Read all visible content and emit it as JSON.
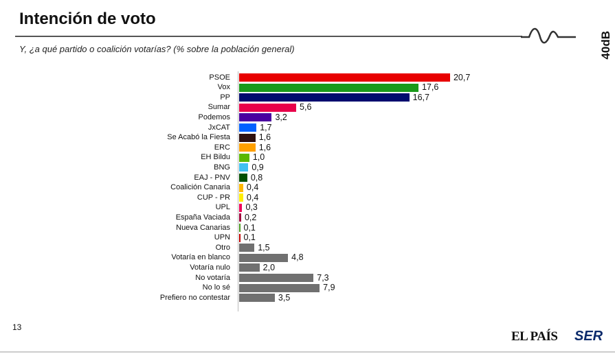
{
  "header": {
    "title": "Intención de voto",
    "subtitle": "Y, ¿a qué partido o coalición votarías? (% sobre la población general)",
    "brand": "40dB"
  },
  "footer": {
    "page_number": "13",
    "logo_1": "EL PAÍS",
    "logo_2": "SER"
  },
  "chart_data": {
    "type": "bar",
    "orientation": "horizontal",
    "title": "Intención de voto",
    "categories": [
      "PSOE",
      "Vox",
      "PP",
      "Sumar",
      "Podemos",
      "JxCAT",
      "Se Acabó la Fiesta",
      "ERC",
      "EH Bildu",
      "BNG",
      "EAJ - PNV",
      "Coalición Canaria",
      "CUP - PR",
      "UPL",
      "España Vaciada",
      "Nueva Canarias",
      "UPN",
      "Otro",
      "Votaría en blanco",
      "Votaría nulo",
      "No votaría",
      "No lo sé",
      "Prefiero no contestar"
    ],
    "values": [
      20.7,
      17.6,
      16.7,
      5.6,
      3.2,
      1.7,
      1.6,
      1.6,
      1.0,
      0.9,
      0.8,
      0.4,
      0.4,
      0.3,
      0.2,
      0.1,
      0.1,
      1.5,
      4.8,
      2.0,
      7.3,
      7.9,
      3.5
    ],
    "value_labels": [
      "20,7",
      "17,6",
      "16,7",
      "5,6",
      "3,2",
      "1,7",
      "1,6",
      "1,6",
      "1,0",
      "0,9",
      "0,8",
      "0,4",
      "0,4",
      "0,3",
      "0,2",
      "0,1",
      "0,1",
      "1,5",
      "4,8",
      "2,0",
      "7,3",
      "7,9",
      "3,5"
    ],
    "colors": [
      "#e80000",
      "#1a9a1a",
      "#000a6e",
      "#e8004a",
      "#4a00a0",
      "#0060ff",
      "#2e1010",
      "#ffa000",
      "#5ab800",
      "#40c0f0",
      "#005000",
      "#ffb800",
      "#ffee00",
      "#f0005a",
      "#a0003c",
      "#4a9a20",
      "#c00000",
      "#707070",
      "#707070",
      "#707070",
      "#707070",
      "#707070",
      "#707070"
    ],
    "xlim": [
      0,
      21
    ],
    "grid": false
  }
}
